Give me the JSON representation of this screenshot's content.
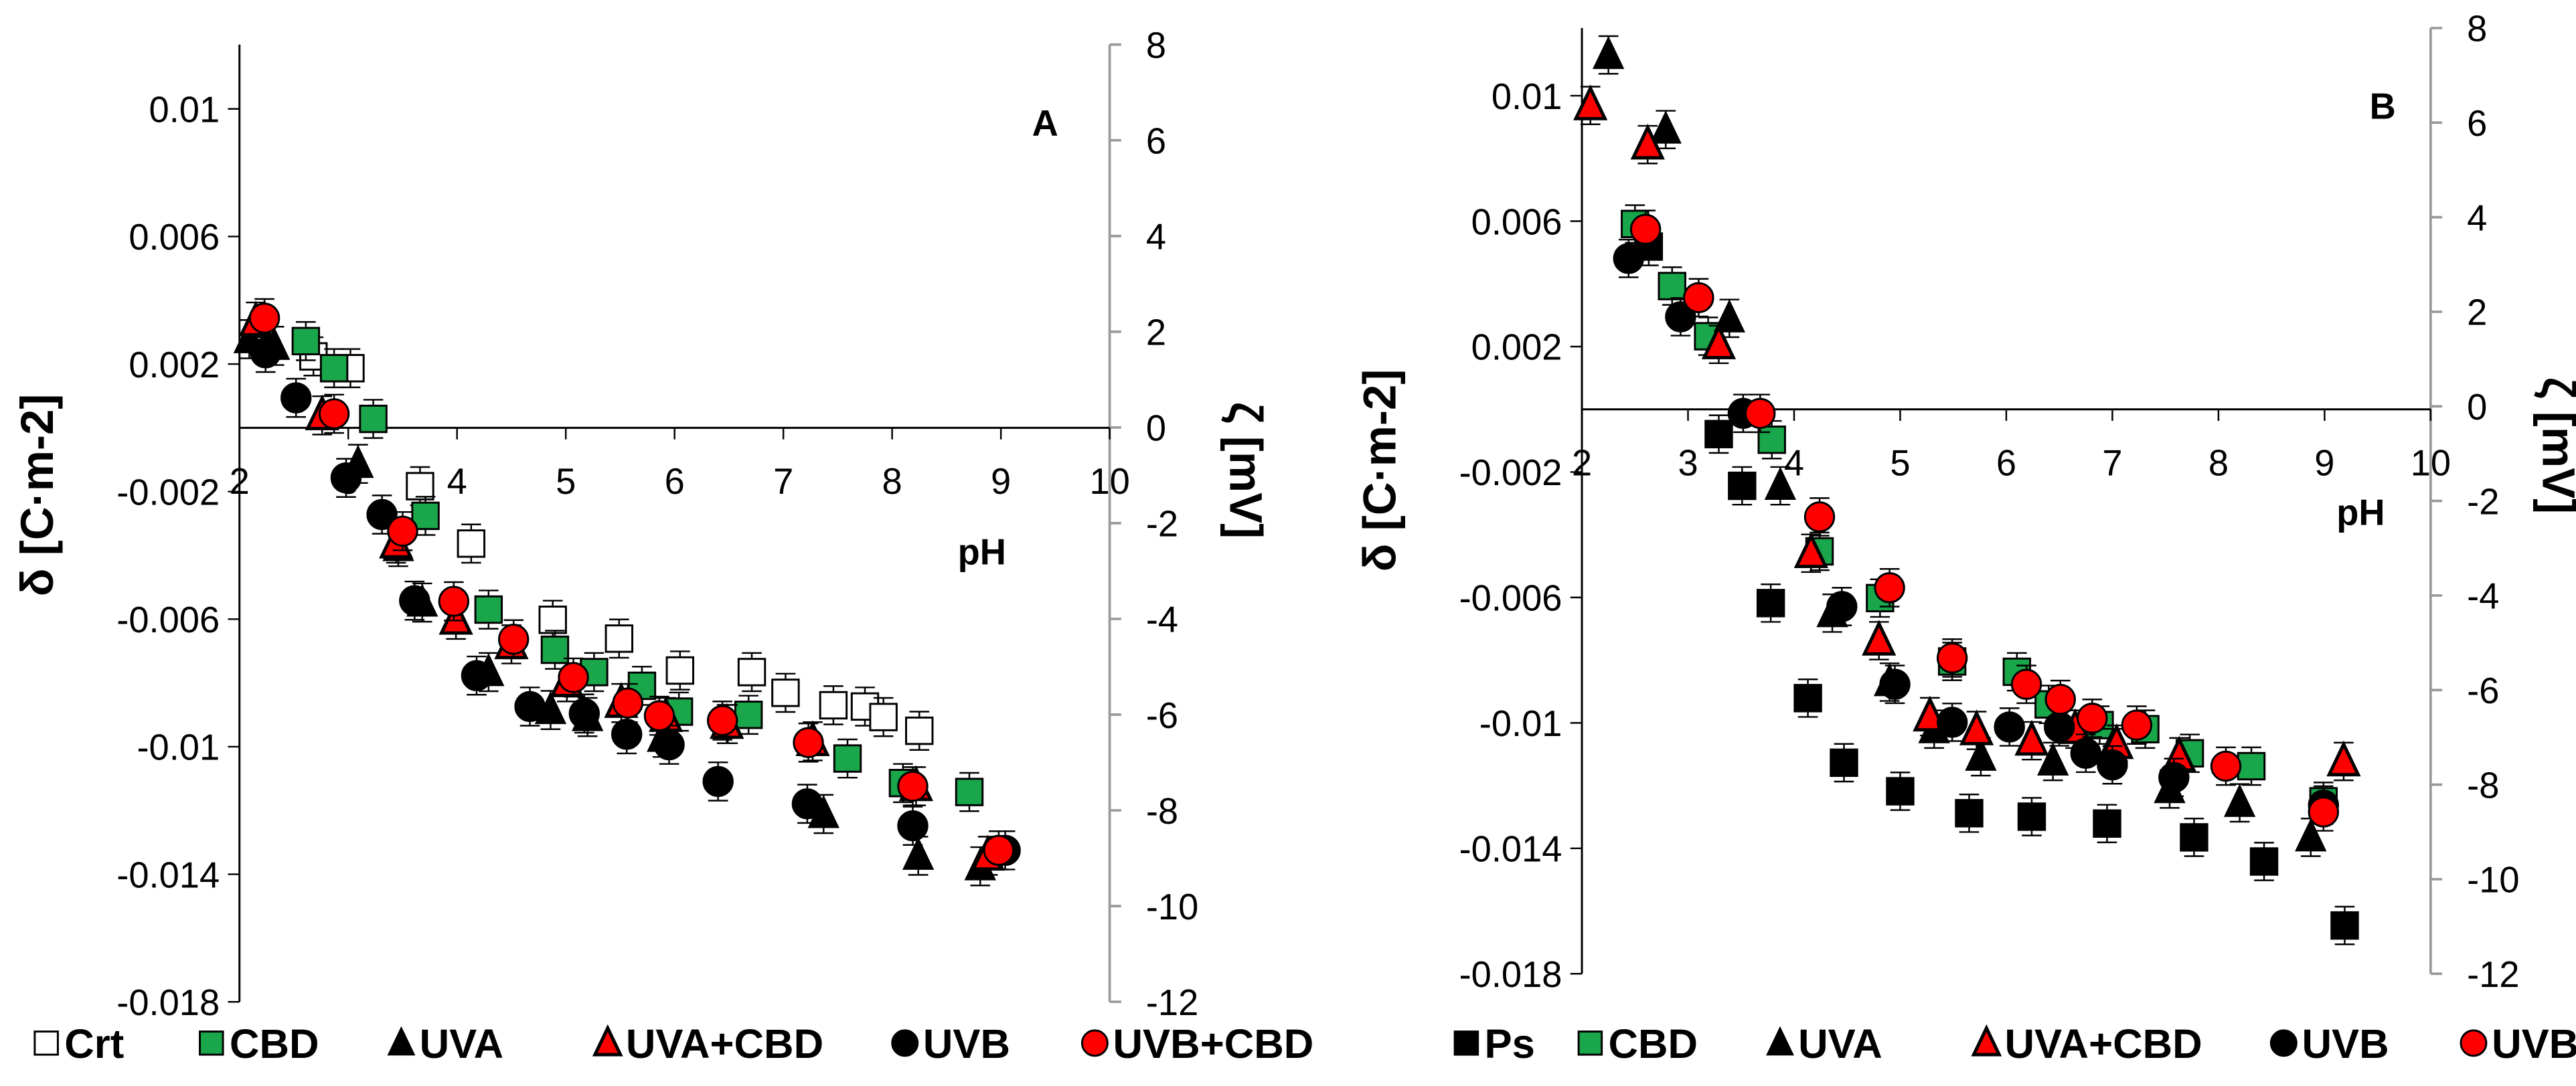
{
  "chart_data": [
    {
      "type": "scatter",
      "panel": "A",
      "xlabel": "pH",
      "ylabel": "δ [C·m-2]",
      "y2label": "ζ [mV]",
      "xlim": [
        2,
        10
      ],
      "ylim": [
        -0.018,
        0.012
      ],
      "y2lim": [
        -12,
        8
      ],
      "xticks": [
        "2",
        "3",
        "4",
        "5",
        "6",
        "7",
        "8",
        "9",
        "10"
      ],
      "yticks": [
        "0.01",
        "0.006",
        "0.002",
        "-0.002",
        "-0.006",
        "-0.01",
        "-0.014",
        "-0.018"
      ],
      "y2ticks": [
        "8",
        "6",
        "4",
        "2",
        "0",
        "-2",
        "-4",
        "-6",
        "-8",
        "-10",
        "-12"
      ],
      "error": 0.0006,
      "series": [
        {
          "name": "Crt",
          "marker": "square",
          "fill": "#ffffff",
          "x": [
            2.68,
            3.02,
            3.66,
            4.13,
            4.88,
            5.49,
            6.05,
            6.71,
            7.02,
            7.46,
            7.75,
            7.92,
            8.25
          ],
          "y": [
            0.00224,
            0.00187,
            -0.00183,
            -0.00363,
            -0.00602,
            -0.00661,
            -0.00761,
            -0.00766,
            -0.00831,
            -0.0087,
            -0.00874,
            -0.00907,
            -0.0095
          ]
        },
        {
          "name": "CBD",
          "marker": "square",
          "fill": "#1aa64a",
          "x": [
            2.61,
            2.87,
            3.23,
            3.71,
            4.29,
            4.9,
            5.26,
            5.7,
            6.04,
            6.68,
            7.59,
            8.1,
            8.71
          ],
          "y": [
            0.00272,
            0.00187,
            0.00028,
            -0.00276,
            -0.0057,
            -0.00696,
            -0.00766,
            -0.00809,
            -0.0089,
            -0.009,
            -0.01037,
            -0.01114,
            -0.01142
          ]
        },
        {
          "name": "UVA",
          "marker": "triangle",
          "fill": "#000000",
          "x": [
            2.09,
            2.32,
            3.09,
            3.46,
            3.68,
            4.29,
            4.86,
            5.2,
            5.89,
            6.49,
            7.37,
            8.24,
            8.81
          ],
          "y": [
            0.00278,
            0.00257,
            -0.00113,
            -0.00374,
            -0.00548,
            -0.00766,
            -0.00885,
            -0.00907,
            -0.00972,
            -0.00929,
            -0.01211,
            -0.01342,
            -0.01375
          ]
        },
        {
          "name": "UVA+CBD",
          "marker": "triangle",
          "fill": "#ff0000",
          "x": [
            2.15,
            2.76,
            3.44,
            3.99,
            4.5,
            5.01,
            5.51,
            5.92,
            6.48,
            7.27,
            8.22,
            8.88
          ],
          "y": [
            0.00333,
            0.00039,
            -0.00363,
            -0.00602,
            -0.00679,
            -0.00798,
            -0.00863,
            -0.00907,
            -0.00929,
            -0.00983,
            -0.01124,
            -0.01342
          ]
        },
        {
          "name": "UVB",
          "marker": "circle",
          "fill": "#000000",
          "x": [
            2.24,
            2.52,
            2.98,
            3.31,
            3.61,
            4.18,
            4.67,
            5.17,
            5.56,
            5.95,
            6.4,
            7.22,
            8.19,
            9.04
          ],
          "y": [
            0.00235,
            0.00094,
            -0.00157,
            -0.00272,
            -0.00542,
            -0.00777,
            -0.00874,
            -0.00896,
            -0.00961,
            -0.00994,
            -0.01109,
            -0.01179,
            -0.01248,
            -0.01325
          ]
        },
        {
          "name": "UVB+CBD",
          "marker": "circle",
          "fill": "#ff0000",
          "x": [
            2.23,
            2.87,
            3.5,
            3.97,
            4.52,
            5.07,
            5.57,
            5.86,
            6.44,
            7.23,
            8.19,
            8.98
          ],
          "y": [
            0.00344,
            0.00044,
            -0.00324,
            -0.00544,
            -0.00663,
            -0.00783,
            -0.00863,
            -0.00903,
            -0.00918,
            -0.00987,
            -0.01124,
            -0.01325
          ]
        }
      ]
    },
    {
      "type": "scatter",
      "panel": "B",
      "xlabel": "pH",
      "ylabel": "δ [C·m-2]",
      "y2label": "ζ [mV]",
      "xlim": [
        2,
        10
      ],
      "ylim": [
        -0.018,
        0.0122
      ],
      "y2lim": [
        -12,
        8
      ],
      "xticks": [
        "2",
        "3",
        "4",
        "5",
        "6",
        "7",
        "8",
        "9",
        "10"
      ],
      "yticks": [
        "0.01",
        "0.006",
        "0.002",
        "-0.002",
        "-0.006",
        "-0.01",
        "-0.014",
        "-0.018"
      ],
      "y2ticks": [
        "8",
        "6",
        "4",
        "2",
        "0",
        "-2",
        "-4",
        "-6",
        "-8",
        "-10",
        "-12"
      ],
      "error": 0.0006,
      "series": [
        {
          "name": "Ps",
          "marker": "square",
          "fill": "#000000",
          "x": [
            2.63,
            3.29,
            3.51,
            3.78,
            4.13,
            4.47,
            5.0,
            5.65,
            6.24,
            6.95,
            7.77,
            8.43,
            9.19
          ],
          "y": [
            0.00519,
            -0.00079,
            -0.00244,
            -0.00618,
            -0.00921,
            -0.01127,
            -0.01218,
            -0.01288,
            -0.01299,
            -0.01321,
            -0.01365,
            -0.01442,
            -0.01646
          ]
        },
        {
          "name": "CBD",
          "marker": "square",
          "fill": "#1aa64a",
          "x": [
            2.5,
            2.85,
            3.19,
            3.79,
            4.24,
            4.81,
            5.49,
            6.1,
            6.4,
            6.88,
            7.31,
            7.73,
            8.31,
            8.99
          ],
          "y": [
            0.00591,
            0.00393,
            0.00233,
            -0.00097,
            -0.00453,
            -0.00602,
            -0.00804,
            -0.00837,
            -0.00941,
            -0.01007,
            -0.0102,
            -0.01097,
            -0.01138,
            -0.0125
          ]
        },
        {
          "name": "UVA",
          "marker": "triangle",
          "fill": "#000000",
          "x": [
            2.25,
            2.79,
            3.39,
            3.87,
            4.36,
            4.9,
            5.32,
            5.76,
            6.44,
            7.0,
            7.54,
            8.2,
            8.87
          ],
          "y": [
            0.0113,
            0.00892,
            0.0029,
            -0.00244,
            -0.0065,
            -0.0087,
            -0.0102,
            -0.01108,
            -0.01123,
            -0.01079,
            -0.01211,
            -0.01255,
            -0.01365
          ]
        },
        {
          "name": "UVA+CBD",
          "marker": "triangle",
          "fill": "#ff0000",
          "x": [
            2.08,
            2.62,
            3.29,
            4.16,
            4.8,
            5.28,
            5.72,
            6.24,
            6.65,
            7.04,
            7.63,
            9.18
          ],
          "y": [
            0.00969,
            0.00844,
            0.00207,
            -0.00459,
            -0.00738,
            -0.0098,
            -0.01024,
            -0.01057,
            -0.0102,
            -0.01068,
            -0.01108,
            -0.01123
          ]
        },
        {
          "name": "UVB",
          "marker": "circle",
          "fill": "#000000",
          "x": [
            2.44,
            2.93,
            3.52,
            4.45,
            4.95,
            5.49,
            6.03,
            6.5,
            6.75,
            7.0,
            7.58,
            8.99
          ],
          "y": [
            0.00481,
            0.00295,
            -0.00013,
            -0.00629,
            -0.00877,
            -0.00998,
            -0.01013,
            -0.01013,
            -0.01097,
            -0.01134,
            -0.01174,
            -0.01262
          ]
        },
        {
          "name": "UVB+CBD",
          "marker": "circle",
          "fill": "#ff0000",
          "x": [
            2.6,
            3.1,
            3.68,
            4.24,
            4.9,
            5.49,
            6.19,
            6.51,
            6.81,
            7.23,
            8.07,
            8.99
          ],
          "y": [
            0.00574,
            0.00356,
            -0.00013,
            -0.00343,
            -0.00569,
            -0.00793,
            -0.00877,
            -0.00925,
            -0.00985,
            -0.01007,
            -0.01138,
            -0.01284
          ]
        }
      ]
    }
  ]
}
